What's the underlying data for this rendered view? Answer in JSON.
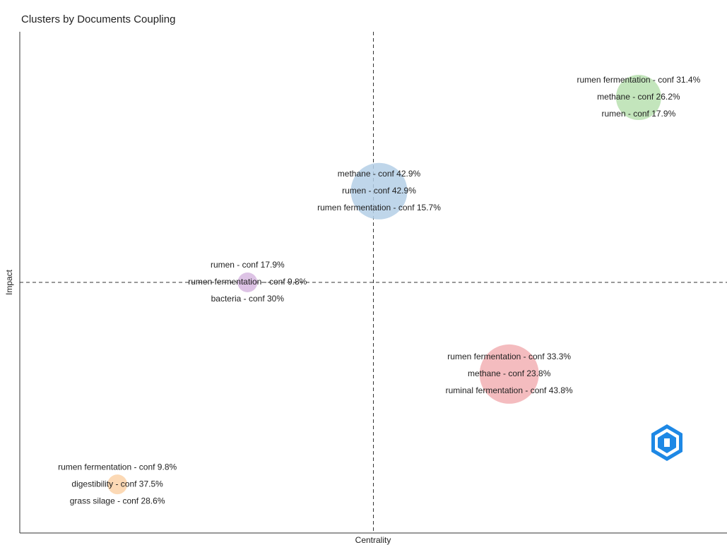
{
  "chart_data": {
    "type": "bubble",
    "title": "Clusters by Documents Coupling",
    "xlabel": "Centrality",
    "ylabel": "Impact",
    "xlim": [
      0,
      1
    ],
    "ylim": [
      0,
      1
    ],
    "clusters": [
      {
        "labels": [
          "rumen fermentation - conf 31.4%",
          "methane - conf 26.2%",
          "rumen - conf 17.9%"
        ],
        "color": "#b8e0b0",
        "x": 0.875,
        "y": 0.869,
        "size": 32
      },
      {
        "labels": [
          "methane - conf 42.9%",
          "rumen - conf 42.9%",
          "rumen fermentation - conf 15.7%"
        ],
        "color": "#b4cfe6",
        "x": 0.508,
        "y": 0.682,
        "size": 40
      },
      {
        "labels": [
          "rumen - conf 17.9%",
          "rumen fermentation - conf 9.8%",
          "bacteria - conf 30%"
        ],
        "color": "#d7b8e0",
        "x": 0.322,
        "y": 0.5,
        "size": 14
      },
      {
        "labels": [
          "rumen fermentation - conf 33.3%",
          "methane - conf 23.8%",
          "ruminal fermentation - conf 43.8%"
        ],
        "color": "#f2b0b4",
        "x": 0.692,
        "y": 0.317,
        "size": 42
      },
      {
        "labels": [
          "rumen fermentation - conf 9.8%",
          "digestibility - conf 37.5%",
          "grass silage - conf 28.6%"
        ],
        "color": "#fcd2a8",
        "x": 0.138,
        "y": 0.097,
        "size": 14
      }
    ]
  }
}
